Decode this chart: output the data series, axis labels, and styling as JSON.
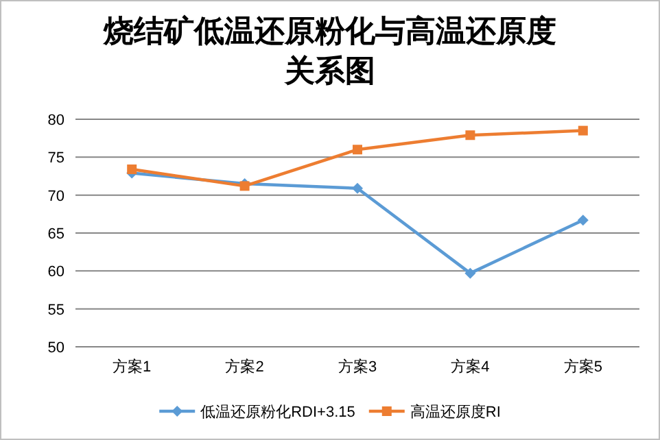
{
  "chart_data": {
    "type": "line",
    "title": "烧结矿低温还原粉化与高温还原度关系图",
    "categories": [
      "方案1",
      "方案2",
      "方案3",
      "方案4",
      "方案5"
    ],
    "series": [
      {
        "name": "低温还原粉化RDI+3.15",
        "color": "#5b9bd5",
        "marker": "diamond",
        "values": [
          72.9,
          71.5,
          70.9,
          59.7,
          66.7
        ]
      },
      {
        "name": "高温还原度RI",
        "color": "#ed7d31",
        "marker": "square",
        "values": [
          73.4,
          71.2,
          76.0,
          77.9,
          78.5
        ]
      }
    ],
    "ylim": [
      50,
      80
    ],
    "yticks": [
      50,
      55,
      60,
      65,
      70,
      75,
      80
    ],
    "grid": "y",
    "legend": "bottom"
  }
}
